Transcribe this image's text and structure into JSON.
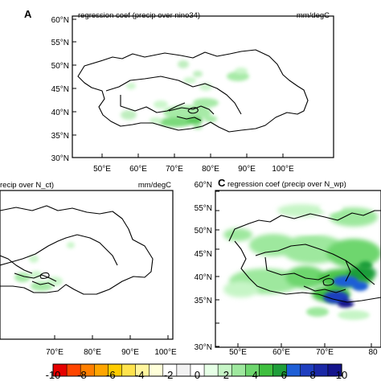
{
  "panels": {
    "a": {
      "letter": "A",
      "title": "regression coef (precip over nino34)",
      "units": "mm/degC",
      "y_ticks": [
        "60°N",
        "55°N",
        "50°N",
        "45°N",
        "40°N",
        "35°N",
        "30°N"
      ],
      "x_ticks": [
        "50°E",
        "60°E",
        "70°E",
        "80°E",
        "90°E",
        "100°E"
      ]
    },
    "b": {
      "title": "recip over N_ct)",
      "units": "mm/degC",
      "x_ticks": [
        "70°E",
        "80°E",
        "90°E",
        "100°E"
      ]
    },
    "c": {
      "letter": "C",
      "title": "regression coef (precip over N_wp)",
      "y_ticks": [
        "60°N",
        "55°N",
        "50°N",
        "45°N",
        "40°N",
        "35°N",
        "30°N"
      ],
      "x_ticks": [
        "50°E",
        "60°E",
        "70°E",
        "80"
      ]
    }
  },
  "colorbar": {
    "labels": [
      "-10",
      "-8",
      "-6",
      "-4",
      "-2",
      "0",
      "2",
      "4",
      "6",
      "8",
      "10"
    ],
    "colors": [
      "#e60000",
      "#ff4500",
      "#ff7f00",
      "#ffa500",
      "#ffcc00",
      "#ffe34d",
      "#fff59d",
      "#ffffd9",
      "#ffffff",
      "#f2f2f2",
      "#ffffff",
      "#e6ffe6",
      "#c6f5c6",
      "#9ee89e",
      "#6ed66e",
      "#3fbf3f",
      "#1f9e3a",
      "#1f5fd6",
      "#1f3fbf",
      "#1a28a6",
      "#14148c"
    ]
  }
}
